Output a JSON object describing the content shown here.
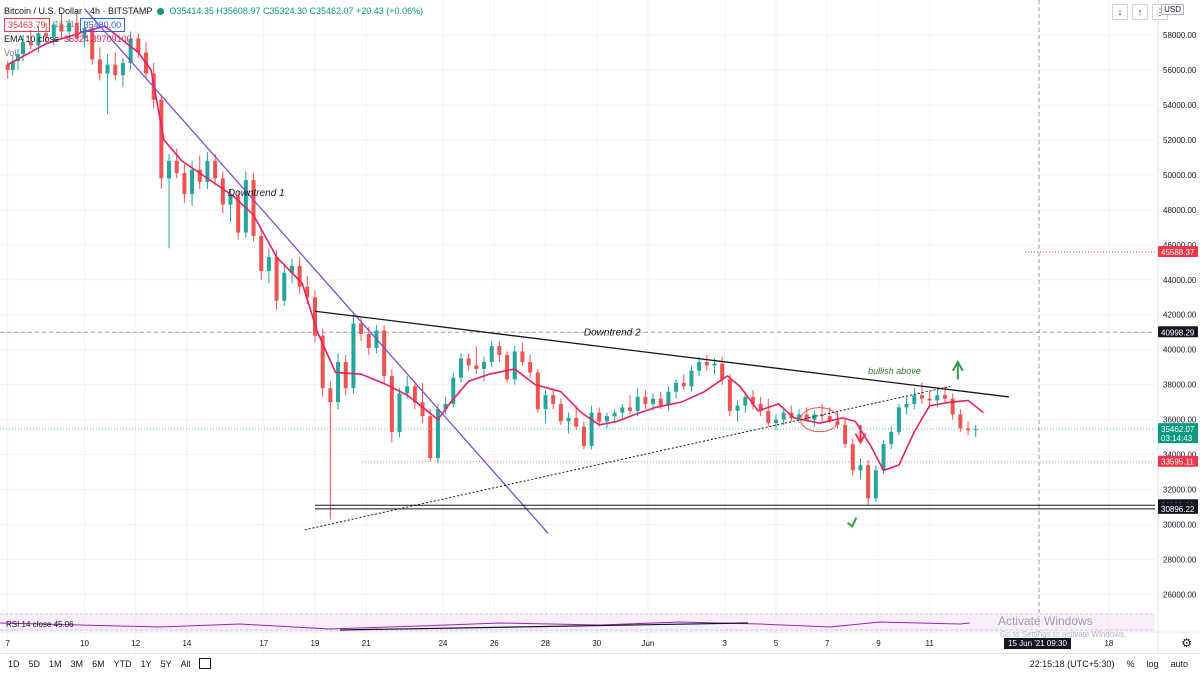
{
  "header": {
    "symbol": "Bitcoin / U.S. Dollar · 4h · BITSTAMP",
    "ohlc": "O35414.35 H35608.97 C35324.30 C35462.07 +20.43 (+0.06%)",
    "sell_price": "35463.79",
    "spread": "16.21",
    "buy_price": "35480.00",
    "ema_label": "EMA 10 close",
    "ema_value": "36324.39709100",
    "vol_label": "Vol"
  },
  "currency": "USD",
  "top_buttons": [
    "↓",
    "↑",
    "⋮"
  ],
  "annotations": {
    "downtrend1": "Downtrend 1",
    "downtrend2": "Downtrend 2",
    "bullish": "bullish above"
  },
  "price_labels": [
    {
      "value": 45588.37,
      "text": "45588.37",
      "color": "#f23645"
    },
    {
      "value": 40998.29,
      "text": "40998.29",
      "color": "#131722"
    },
    {
      "value": 35462.07,
      "text": "35462.07",
      "sub": "03:14:43",
      "color": "#089981"
    },
    {
      "value": 33595.11,
      "text": "33595.11",
      "color": "#f23645"
    },
    {
      "value": 31102.6,
      "text": "31102.60",
      "color": "#131722"
    },
    {
      "value": 30896.22,
      "text": "30896.22",
      "color": "#131722"
    }
  ],
  "rsi": {
    "label": "RSI 14 close",
    "value": "45.06"
  },
  "watermark": {
    "title": "Activate Windows",
    "sub": "Go to Settings to activate Windows."
  },
  "time_badge": "15 Jun '21  09:30",
  "bottom": {
    "ranges": [
      "1D",
      "5D",
      "1M",
      "3M",
      "6M",
      "YTD",
      "1Y",
      "5Y",
      "All"
    ],
    "clock": "22:15:18 (UTC+5:30)",
    "pct": "%",
    "log": "log",
    "auto": "auto"
  },
  "chart_data": {
    "type": "candlestick",
    "title": "Bitcoin / U.S. Dollar · 4h · BITSTAMP",
    "ylim": [
      25000,
      60000
    ],
    "y_ticks": [
      26000,
      28000,
      30000,
      32000,
      34000,
      36000,
      38000,
      40000,
      42000,
      44000,
      46000,
      48000,
      50000,
      52000,
      54000,
      56000,
      58000
    ],
    "x_ticks": [
      "7",
      "10",
      "12",
      "14",
      "17",
      "19",
      "21",
      "24",
      "26",
      "28",
      "30",
      "Jun",
      "3",
      "5",
      "7",
      "9",
      "11",
      "18"
    ],
    "x_tick_days": [
      7,
      10,
      12,
      14,
      17,
      19,
      21,
      24,
      26,
      28,
      30,
      32,
      35,
      37,
      39,
      41,
      43,
      50
    ],
    "x_range_days": [
      6.7,
      51.8
    ],
    "series": [
      {
        "name": "EMA 10 close",
        "color": "#e91e63",
        "points": [
          [
            7,
            56300
          ],
          [
            8.5,
            57500
          ],
          [
            10,
            58200
          ],
          [
            10.8,
            58500
          ],
          [
            12.1,
            57000
          ],
          [
            12.6,
            56000
          ],
          [
            13.1,
            52000
          ],
          [
            13.8,
            50800
          ],
          [
            14.8,
            49800
          ],
          [
            15.8,
            48800
          ],
          [
            16.6,
            47700
          ],
          [
            17.5,
            45300
          ],
          [
            18.5,
            43800
          ],
          [
            19.1,
            41000
          ],
          [
            19.8,
            38700
          ],
          [
            20.8,
            38600
          ],
          [
            21.8,
            38000
          ],
          [
            22.6,
            37400
          ],
          [
            23.3,
            36600
          ],
          [
            23.8,
            36000
          ],
          [
            24.3,
            37000
          ],
          [
            25,
            38200
          ],
          [
            25.8,
            38600
          ],
          [
            26.8,
            38900
          ],
          [
            27.6,
            38000
          ],
          [
            28.6,
            37600
          ],
          [
            29.4,
            36400
          ],
          [
            30.1,
            35700
          ],
          [
            30.8,
            35900
          ],
          [
            31.5,
            36300
          ],
          [
            32.3,
            36700
          ],
          [
            33.3,
            37000
          ],
          [
            34.2,
            37600
          ],
          [
            35.1,
            38500
          ],
          [
            35.6,
            37900
          ],
          [
            36.3,
            36500
          ],
          [
            37.1,
            36900
          ],
          [
            37.7,
            36100
          ],
          [
            38.7,
            35800
          ],
          [
            39.6,
            36100
          ],
          [
            40.1,
            35900
          ],
          [
            40.7,
            34500
          ],
          [
            41.2,
            33100
          ],
          [
            41.8,
            33400
          ],
          [
            42.4,
            35300
          ],
          [
            43,
            36800
          ],
          [
            43.8,
            37000
          ],
          [
            44.5,
            37100
          ],
          [
            45.1,
            36400
          ]
        ]
      },
      {
        "name": "RSI 14 close",
        "color": "#9c27b0"
      }
    ],
    "candles": [
      [
        7,
        56300,
        56500,
        55500,
        56000
      ],
      [
        7.2,
        56000,
        56800,
        55700,
        56500
      ],
      [
        7.4,
        56500,
        57200,
        56000,
        56900
      ],
      [
        7.6,
        56900,
        58000,
        56500,
        57600
      ],
      [
        7.9,
        57600,
        58300,
        57200,
        57400
      ],
      [
        8.2,
        57400,
        58500,
        57000,
        58100
      ],
      [
        8.5,
        58100,
        58700,
        57500,
        57900
      ],
      [
        8.8,
        57900,
        58800,
        57400,
        58600
      ],
      [
        9.1,
        58600,
        59200,
        57800,
        58200
      ],
      [
        9.4,
        58200,
        58900,
        57600,
        58700
      ],
      [
        9.7,
        58700,
        59300,
        57900,
        57800
      ],
      [
        10,
        57800,
        58800,
        57300,
        58400
      ],
      [
        10.3,
        58400,
        58500,
        56300,
        56600
      ],
      [
        10.6,
        56600,
        57300,
        55400,
        55800
      ],
      [
        10.9,
        55800,
        56900,
        53500,
        56300
      ],
      [
        11.2,
        56300,
        57000,
        55400,
        55700
      ],
      [
        11.5,
        55700,
        56700,
        55000,
        56400
      ],
      [
        11.8,
        56400,
        58200,
        56000,
        57800
      ],
      [
        12.1,
        57800,
        58100,
        56700,
        57000
      ],
      [
        12.4,
        57000,
        57600,
        55600,
        55800
      ],
      [
        12.7,
        55800,
        56400,
        53800,
        54300
      ],
      [
        13,
        54300,
        54600,
        49200,
        49800
      ],
      [
        13.3,
        49800,
        51200,
        45800,
        50800
      ],
      [
        13.6,
        50800,
        51500,
        49800,
        50100
      ],
      [
        13.9,
        50100,
        50600,
        48400,
        48900
      ],
      [
        14.2,
        48900,
        50800,
        48200,
        50300
      ],
      [
        14.5,
        50300,
        51100,
        49200,
        49600
      ],
      [
        14.8,
        49600,
        51300,
        49200,
        50800
      ],
      [
        15.1,
        50800,
        51200,
        49400,
        49800
      ],
      [
        15.4,
        49800,
        50200,
        47800,
        48300
      ],
      [
        15.7,
        48300,
        49200,
        47300,
        48800
      ],
      [
        16,
        48800,
        49100,
        46300,
        46700
      ],
      [
        16.3,
        46700,
        50200,
        46400,
        49700
      ],
      [
        16.6,
        49700,
        50100,
        46200,
        46500
      ],
      [
        16.9,
        46500,
        46900,
        44000,
        44500
      ],
      [
        17.2,
        44500,
        45800,
        43800,
        45300
      ],
      [
        17.5,
        45300,
        45700,
        42300,
        42800
      ],
      [
        17.8,
        42800,
        44900,
        42500,
        44400
      ],
      [
        18.1,
        44400,
        45200,
        43800,
        44800
      ],
      [
        18.4,
        44800,
        45300,
        43200,
        43600
      ],
      [
        18.7,
        43600,
        44200,
        42600,
        43000
      ],
      [
        19,
        43000,
        43400,
        40400,
        40800
      ],
      [
        19.3,
        40800,
        41200,
        37300,
        37800
      ],
      [
        19.6,
        37800,
        38200,
        30300,
        37000
      ],
      [
        19.9,
        37000,
        39800,
        36600,
        39300
      ],
      [
        20.2,
        39300,
        39700,
        37400,
        37800
      ],
      [
        20.5,
        37800,
        42000,
        37500,
        41500
      ],
      [
        20.8,
        41500,
        41800,
        40500,
        40900
      ],
      [
        21.1,
        40900,
        41300,
        39700,
        40100
      ],
      [
        21.4,
        40100,
        41400,
        39800,
        41100
      ],
      [
        21.7,
        41100,
        41400,
        38100,
        38500
      ],
      [
        22,
        38500,
        38900,
        34700,
        35300
      ],
      [
        22.3,
        35300,
        37800,
        35000,
        37500
      ],
      [
        22.6,
        37500,
        38500,
        37200,
        37900
      ],
      [
        22.9,
        37900,
        38200,
        36600,
        37000
      ],
      [
        23.2,
        37000,
        38100,
        35800,
        36200
      ],
      [
        23.5,
        36200,
        36600,
        33600,
        33800
      ],
      [
        23.8,
        33800,
        36900,
        33500,
        36600
      ],
      [
        24.1,
        36600,
        37300,
        36300,
        36900
      ],
      [
        24.4,
        36900,
        38700,
        36700,
        38400
      ],
      [
        24.7,
        38400,
        39800,
        38100,
        39500
      ],
      [
        25,
        39500,
        39800,
        38800,
        39100
      ],
      [
        25.3,
        39100,
        40200,
        38600,
        38900
      ],
      [
        25.6,
        38900,
        39600,
        38200,
        39300
      ],
      [
        25.9,
        39300,
        40500,
        39000,
        40200
      ],
      [
        26.2,
        40200,
        40500,
        39300,
        39700
      ],
      [
        26.5,
        39700,
        39900,
        38100,
        38300
      ],
      [
        26.8,
        38300,
        40200,
        38000,
        39900
      ],
      [
        27.1,
        39900,
        40400,
        39100,
        39300
      ],
      [
        27.4,
        39300,
        39700,
        38400,
        38700
      ],
      [
        27.7,
        38700,
        38900,
        36400,
        36600
      ],
      [
        28,
        36600,
        37700,
        35800,
        37400
      ],
      [
        28.3,
        37400,
        37800,
        36600,
        36900
      ],
      [
        28.6,
        36900,
        37200,
        35700,
        35900
      ],
      [
        28.9,
        35900,
        36400,
        35200,
        36100
      ],
      [
        29.2,
        36100,
        36800,
        35400,
        35600
      ],
      [
        29.5,
        35600,
        35900,
        34300,
        34500
      ],
      [
        29.8,
        34500,
        36800,
        34300,
        36400
      ],
      [
        30.1,
        36400,
        36700,
        35600,
        35900
      ],
      [
        30.4,
        35900,
        36400,
        35500,
        36200
      ],
      [
        30.7,
        36200,
        36600,
        35800,
        36400
      ],
      [
        31,
        36400,
        36900,
        36000,
        36700
      ],
      [
        31.3,
        36700,
        37400,
        36300,
        36500
      ],
      [
        31.6,
        36500,
        37800,
        36200,
        37300
      ],
      [
        31.9,
        37300,
        37700,
        36600,
        36900
      ],
      [
        32.2,
        36900,
        37500,
        36500,
        37200
      ],
      [
        32.5,
        37200,
        37600,
        36600,
        36800
      ],
      [
        32.8,
        36800,
        37900,
        36500,
        37600
      ],
      [
        33.1,
        37600,
        38300,
        37200,
        38100
      ],
      [
        33.4,
        38100,
        38600,
        37700,
        37900
      ],
      [
        33.7,
        37900,
        39100,
        37600,
        38800
      ],
      [
        34,
        38800,
        39600,
        38500,
        39300
      ],
      [
        34.3,
        39300,
        39700,
        38800,
        39100
      ],
      [
        34.6,
        39100,
        39500,
        38600,
        39200
      ],
      [
        34.9,
        39200,
        39600,
        38000,
        38300
      ],
      [
        35.2,
        38300,
        38600,
        36200,
        36500
      ],
      [
        35.5,
        36500,
        37100,
        35900,
        36800
      ],
      [
        35.8,
        36800,
        37600,
        36400,
        37300
      ],
      [
        36.1,
        37300,
        37700,
        36600,
        36900
      ],
      [
        36.4,
        36900,
        37300,
        36200,
        36500
      ],
      [
        36.7,
        36500,
        37200,
        35600,
        35800
      ],
      [
        37,
        35800,
        36300,
        35400,
        36000
      ],
      [
        37.3,
        36000,
        36700,
        35700,
        36400
      ],
      [
        37.6,
        36400,
        36800,
        35900,
        36100
      ],
      [
        37.9,
        36100,
        36600,
        35800,
        36300
      ],
      [
        38.2,
        36300,
        36700,
        35900,
        36000
      ],
      [
        38.5,
        36000,
        36500,
        35600,
        36300
      ],
      [
        38.8,
        36300,
        36900,
        35900,
        36200
      ],
      [
        39.1,
        36200,
        36700,
        35800,
        35900
      ],
      [
        39.4,
        35900,
        36500,
        35500,
        35700
      ],
      [
        39.7,
        35700,
        36100,
        34400,
        34600
      ],
      [
        40,
        34600,
        34900,
        32800,
        33100
      ],
      [
        40.3,
        33100,
        33800,
        32600,
        33400
      ],
      [
        40.6,
        33400,
        33700,
        31100,
        31500
      ],
      [
        40.9,
        31500,
        33400,
        31300,
        33100
      ],
      [
        41.2,
        33100,
        34800,
        32900,
        34600
      ],
      [
        41.5,
        34600,
        35600,
        34300,
        35300
      ],
      [
        41.8,
        35300,
        36900,
        35100,
        36700
      ],
      [
        42.1,
        36700,
        37300,
        36300,
        36900
      ],
      [
        42.4,
        36900,
        37800,
        36600,
        37400
      ],
      [
        42.7,
        37400,
        38100,
        36900,
        37200
      ],
      [
        43,
        37200,
        37600,
        36800,
        37100
      ],
      [
        43.3,
        37100,
        37700,
        36700,
        37400
      ],
      [
        43.6,
        37400,
        37900,
        37000,
        37200
      ],
      [
        43.9,
        37200,
        37500,
        36000,
        36300
      ],
      [
        44.2,
        36300,
        36600,
        35300,
        35500
      ],
      [
        44.5,
        35500,
        35900,
        35100,
        35400
      ],
      [
        44.8,
        35400,
        35700,
        35000,
        35460
      ]
    ]
  }
}
